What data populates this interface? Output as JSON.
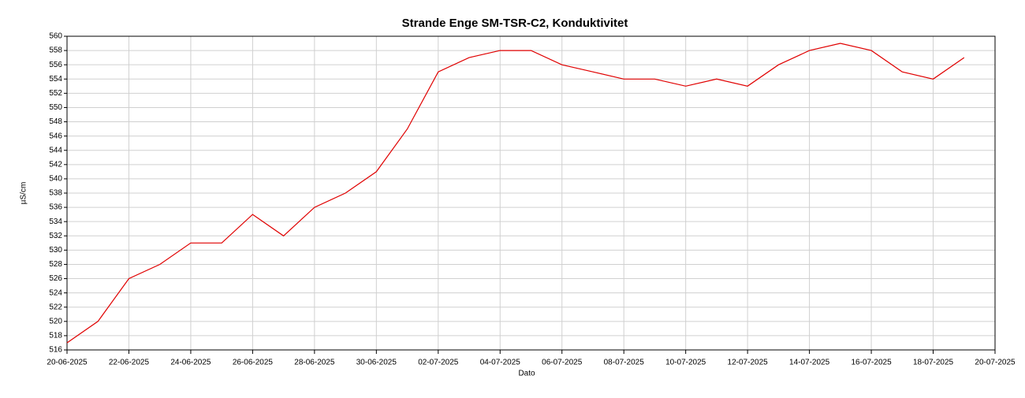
{
  "chart_data": {
    "type": "line",
    "title": "Strande Enge SM-TSR-C2, Konduktivitet",
    "xlabel": "Dato",
    "ylabel": "µS/cm",
    "x": [
      "20-06-2025",
      "21-06-2025",
      "22-06-2025",
      "23-06-2025",
      "24-06-2025",
      "25-06-2025",
      "26-06-2025",
      "27-06-2025",
      "28-06-2025",
      "29-06-2025",
      "30-06-2025",
      "01-07-2025",
      "02-07-2025",
      "03-07-2025",
      "04-07-2025",
      "05-07-2025",
      "06-07-2025",
      "07-07-2025",
      "08-07-2025",
      "09-07-2025",
      "10-07-2025",
      "11-07-2025",
      "12-07-2025",
      "13-07-2025",
      "14-07-2025",
      "15-07-2025",
      "16-07-2025",
      "17-07-2025",
      "18-07-2025",
      "19-07-2025"
    ],
    "series": [
      {
        "name": "Konduktivitet",
        "color": "#e00000",
        "values": [
          517,
          520,
          526,
          528,
          531,
          531,
          535,
          532,
          536,
          538,
          541,
          547,
          555,
          557,
          558,
          558,
          556,
          555,
          554,
          554,
          553,
          554,
          553,
          556,
          558,
          559,
          558,
          555,
          554,
          557
        ]
      }
    ],
    "xlim": [
      "20-06-2025",
      "20-07-2025"
    ],
    "xticks": [
      "20-06-2025",
      "22-06-2025",
      "24-06-2025",
      "26-06-2025",
      "28-06-2025",
      "30-06-2025",
      "02-07-2025",
      "04-07-2025",
      "06-07-2025",
      "08-07-2025",
      "10-07-2025",
      "12-07-2025",
      "14-07-2025",
      "16-07-2025",
      "18-07-2025",
      "20-07-2025"
    ],
    "ylim": [
      516,
      560
    ],
    "yticks": [
      516,
      518,
      520,
      522,
      524,
      526,
      528,
      530,
      532,
      534,
      536,
      538,
      540,
      542,
      544,
      546,
      548,
      550,
      552,
      554,
      556,
      558,
      560
    ],
    "grid": true
  }
}
